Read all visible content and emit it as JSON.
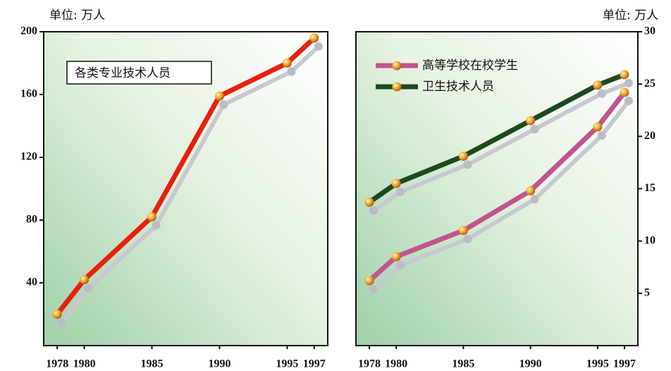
{
  "chart_data": [
    {
      "type": "line",
      "unit": "单位: 万人",
      "axis_side": "left",
      "legend": "upper left",
      "x": [
        1978,
        1980,
        1985,
        1990,
        1995,
        1997
      ],
      "xlim": [
        1977,
        1998
      ],
      "xticks": [
        1978,
        1980,
        1985,
        1990,
        1995,
        1997
      ],
      "ylim": [
        0,
        200
      ],
      "yticks": [
        40,
        80,
        120,
        160,
        200
      ],
      "series": [
        {
          "name": "各类专业技术人员",
          "color": "#e8200c",
          "values": [
            20,
            42,
            82,
            159,
            180,
            196
          ]
        }
      ]
    },
    {
      "type": "line",
      "unit": "单位: 万人",
      "axis_side": "right",
      "legend": "upper left",
      "x": [
        1978,
        1980,
        1985,
        1990,
        1995,
        1997
      ],
      "xlim": [
        1977,
        1998
      ],
      "xticks": [
        1978,
        1980,
        1985,
        1990,
        1995,
        1997
      ],
      "ylim": [
        0,
        30
      ],
      "yticks": [
        5,
        10,
        15,
        20,
        25,
        30
      ],
      "series": [
        {
          "name": "高等学校在校学生",
          "color": "#c2548e",
          "values": [
            6.2,
            8.5,
            11.0,
            14.8,
            20.9,
            24.2
          ]
        },
        {
          "name": "卫生技术人员",
          "color": "#1c4a1f",
          "values": [
            13.7,
            15.5,
            18.1,
            21.5,
            24.9,
            25.9
          ]
        }
      ]
    }
  ]
}
